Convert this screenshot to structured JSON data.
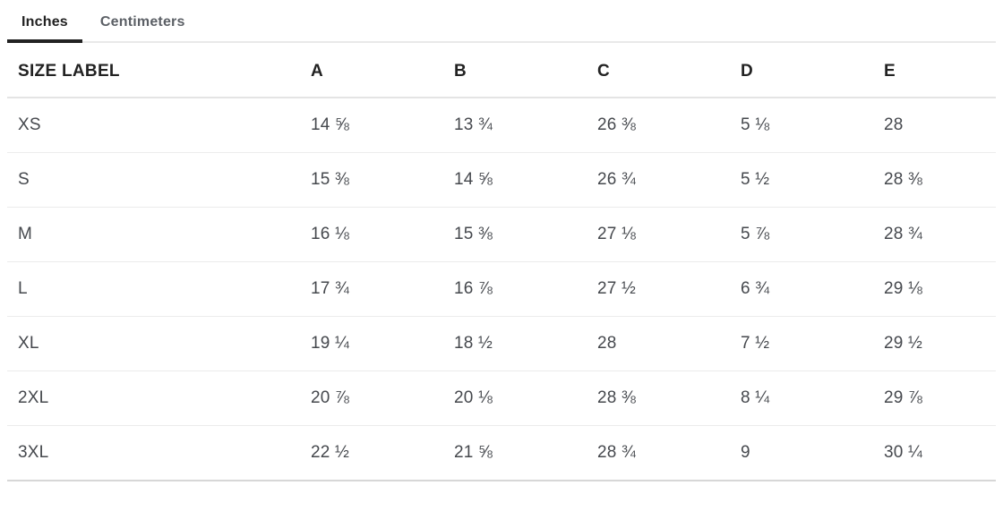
{
  "tabs": [
    {
      "label": "Inches",
      "active": true
    },
    {
      "label": "Centimeters",
      "active": false
    }
  ],
  "table": {
    "columns": [
      "SIZE LABEL",
      "A",
      "B",
      "C",
      "D",
      "E"
    ],
    "rows": [
      {
        "label": "XS",
        "values": [
          "14 ⅝",
          "13 ¾",
          "26 ⅜",
          "5 ⅛",
          "28"
        ]
      },
      {
        "label": "S",
        "values": [
          "15 ⅜",
          "14 ⅝",
          "26 ¾",
          "5 ½",
          "28 ⅜"
        ]
      },
      {
        "label": "M",
        "values": [
          "16 ⅛",
          "15 ⅜",
          "27 ⅛",
          "5 ⅞",
          "28 ¾"
        ]
      },
      {
        "label": "L",
        "values": [
          "17 ¾",
          "16 ⅞",
          "27 ½",
          "6 ¾",
          "29 ⅛"
        ]
      },
      {
        "label": "XL",
        "values": [
          "19 ¼",
          "18 ½",
          "28",
          "7 ½",
          "29 ½"
        ]
      },
      {
        "label": "2XL",
        "values": [
          "20 ⅞",
          "20 ⅛",
          "28 ⅜",
          "8 ¼",
          "29 ⅞"
        ]
      },
      {
        "label": "3XL",
        "values": [
          "22 ½",
          "21 ⅝",
          "28 ¾",
          "9",
          "30 ¼"
        ]
      }
    ]
  },
  "colors": {
    "active_tab_text": "#222222",
    "inactive_tab_text": "#5c6066",
    "active_tab_underline": "#222222",
    "tabbar_border": "#e9e9e9",
    "header_text": "#222222",
    "cell_text": "#45484d",
    "row_separator": "#ececec",
    "header_separator": "#e4e4e4",
    "bottom_border": "#d7d7d7"
  }
}
